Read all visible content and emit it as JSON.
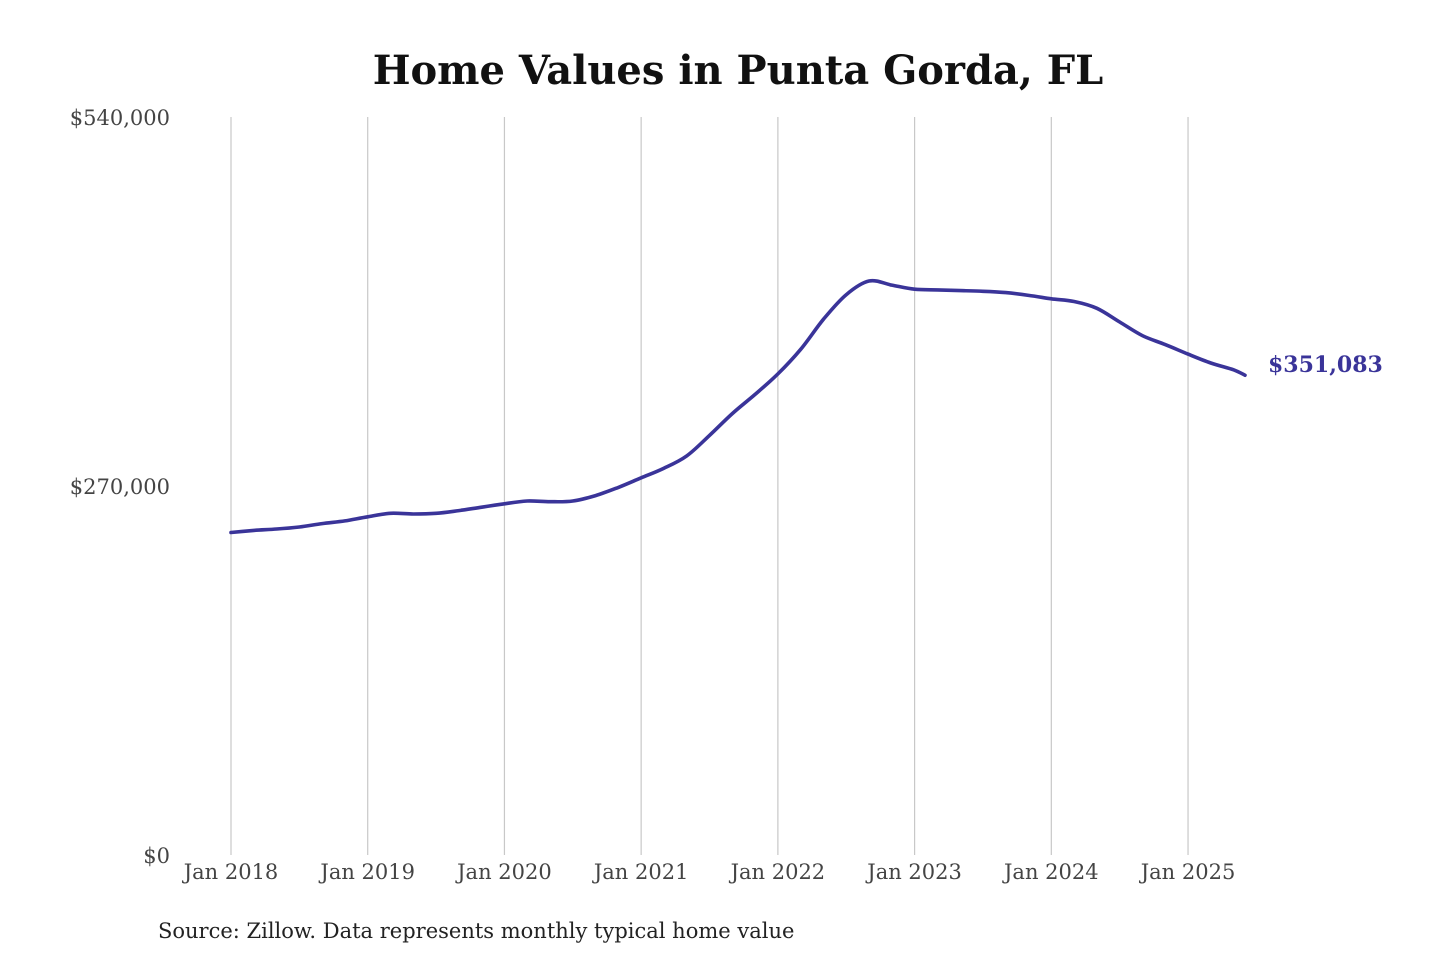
{
  "chart_data": {
    "type": "line",
    "title": "Home Values in Punta Gorda, FL",
    "xlabel": "",
    "ylabel": "",
    "x_tick_labels": [
      "Jan 2018",
      "Jan 2019",
      "Jan 2020",
      "Jan 2021",
      "Jan 2022",
      "Jan 2023",
      "Jan 2024",
      "Jan 2025"
    ],
    "y_tick_labels": [
      "$0",
      "$270,000",
      "$540,000"
    ],
    "y_ticks": [
      0,
      270000,
      540000
    ],
    "ylim": [
      0,
      540000
    ],
    "xlim": [
      "2018-01",
      "2025-06"
    ],
    "grid": "vertical",
    "line_color": "#3a3499",
    "end_label": "$351,083",
    "source": "Source: Zillow. Data represents monthly typical home value",
    "series": [
      {
        "x": [
          "2018-01",
          "2018-03",
          "2018-05",
          "2018-07",
          "2018-09",
          "2018-11",
          "2019-01",
          "2019-03",
          "2019-05",
          "2019-07",
          "2019-09",
          "2019-11",
          "2020-01",
          "2020-03",
          "2020-05",
          "2020-07",
          "2020-09",
          "2020-11",
          "2021-01",
          "2021-03",
          "2021-05",
          "2021-07",
          "2021-09",
          "2021-11",
          "2022-01",
          "2022-03",
          "2022-05",
          "2022-07",
          "2022-09",
          "2022-11",
          "2023-01",
          "2023-03",
          "2023-05",
          "2023-07",
          "2023-09",
          "2023-11",
          "2024-01",
          "2024-03",
          "2024-05",
          "2024-07",
          "2024-09",
          "2024-11",
          "2025-01",
          "2025-03",
          "2025-05",
          "2025-06"
        ],
        "values": [
          236000,
          237500,
          238500,
          240000,
          242500,
          244500,
          247500,
          250000,
          249500,
          250000,
          252000,
          254500,
          257000,
          259000,
          258500,
          259000,
          263000,
          269000,
          276000,
          283000,
          292000,
          307000,
          323000,
          337000,
          352000,
          370000,
          392000,
          410000,
          420000,
          417000,
          414000,
          413500,
          413000,
          412500,
          411500,
          409500,
          407000,
          405000,
          400000,
          390000,
          380000,
          373500,
          366500,
          360000,
          355000,
          351083
        ]
      }
    ]
  }
}
